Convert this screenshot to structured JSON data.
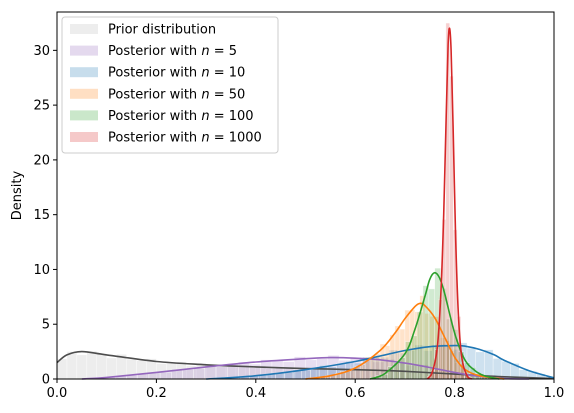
{
  "chart_data": {
    "type": "area",
    "xlabel": "",
    "ylabel": "Density",
    "xlim": [
      0,
      1.0
    ],
    "ylim": [
      0,
      33.5
    ],
    "x_ticks": [
      "0.0",
      "0.2",
      "0.4",
      "0.6",
      "0.8",
      "1.0"
    ],
    "y_ticks": [
      "0",
      "5",
      "10",
      "15",
      "20",
      "25",
      "30"
    ],
    "grid": false,
    "legend_position": "top-left",
    "series": [
      {
        "name": "Prior distribution",
        "hist_color": "#cccccc",
        "line_color": "#4d4d4d",
        "x": [
          0.0,
          0.02,
          0.05,
          0.1,
          0.2,
          0.3,
          0.4,
          0.5,
          0.6,
          0.7,
          0.8,
          0.9,
          1.0
        ],
        "y": [
          1.5,
          2.2,
          2.5,
          2.2,
          1.6,
          1.3,
          1.1,
          0.95,
          0.85,
          0.7,
          0.45,
          0.2,
          0.05
        ]
      },
      {
        "name": "Posterior with n = 5",
        "hist_color": "#9467bd",
        "line_color": "#9467bd",
        "x": [
          0.05,
          0.1,
          0.2,
          0.3,
          0.4,
          0.5,
          0.55,
          0.6,
          0.65,
          0.7,
          0.75,
          0.8,
          0.85,
          0.9,
          0.95
        ],
        "y": [
          0.0,
          0.15,
          0.6,
          1.1,
          1.55,
          1.85,
          1.95,
          1.9,
          1.75,
          1.45,
          1.05,
          0.6,
          0.25,
          0.05,
          0.0
        ]
      },
      {
        "name": "Posterior with n = 10",
        "hist_color": "#1f77b4",
        "line_color": "#1f77b4",
        "x": [
          0.3,
          0.4,
          0.5,
          0.6,
          0.65,
          0.7,
          0.75,
          0.8,
          0.82,
          0.85,
          0.88,
          0.9,
          0.95,
          1.0
        ],
        "y": [
          0.0,
          0.3,
          0.85,
          1.6,
          2.1,
          2.6,
          2.95,
          3.05,
          3.0,
          2.7,
          2.2,
          1.7,
          0.75,
          0.1
        ]
      },
      {
        "name": "Posterior with n = 50",
        "hist_color": "#ff7f0e",
        "line_color": "#ff7f0e",
        "x": [
          0.5,
          0.55,
          0.6,
          0.65,
          0.68,
          0.7,
          0.72,
          0.73,
          0.74,
          0.76,
          0.78,
          0.8,
          0.82,
          0.85,
          0.9
        ],
        "y": [
          0.0,
          0.3,
          1.0,
          2.6,
          4.2,
          5.5,
          6.6,
          6.9,
          6.7,
          5.6,
          3.8,
          2.0,
          0.9,
          0.3,
          0.0
        ]
      },
      {
        "name": "Posterior with n = 100",
        "hist_color": "#2ca02c",
        "line_color": "#2ca02c",
        "x": [
          0.63,
          0.66,
          0.7,
          0.72,
          0.74,
          0.75,
          0.76,
          0.77,
          0.78,
          0.8,
          0.82,
          0.84,
          0.86,
          0.89
        ],
        "y": [
          0.0,
          0.5,
          2.3,
          4.5,
          7.5,
          9.1,
          9.7,
          9.2,
          7.8,
          4.2,
          1.8,
          0.8,
          0.3,
          0.0
        ]
      },
      {
        "name": "Posterior with n = 1000",
        "hist_color": "#d62728",
        "line_color": "#d62728",
        "x": [
          0.745,
          0.755,
          0.765,
          0.772,
          0.778,
          0.783,
          0.787,
          0.79,
          0.793,
          0.797,
          0.802,
          0.808,
          0.815,
          0.825,
          0.835
        ],
        "y": [
          0.0,
          0.6,
          2.8,
          7.5,
          15.0,
          24.0,
          30.5,
          32.0,
          30.0,
          23.0,
          13.0,
          5.5,
          1.8,
          0.3,
          0.0
        ]
      }
    ]
  },
  "legend": {
    "items": [
      {
        "prefix": "Prior distribution",
        "var": "",
        "suffix": ""
      },
      {
        "prefix": "Posterior with ",
        "var": "n",
        "suffix": " = 5"
      },
      {
        "prefix": "Posterior with ",
        "var": "n",
        "suffix": " = 10"
      },
      {
        "prefix": "Posterior with ",
        "var": "n",
        "suffix": " = 50"
      },
      {
        "prefix": "Posterior with ",
        "var": "n",
        "suffix": " = 100"
      },
      {
        "prefix": "Posterior with ",
        "var": "n",
        "suffix": " = 1000"
      }
    ]
  }
}
